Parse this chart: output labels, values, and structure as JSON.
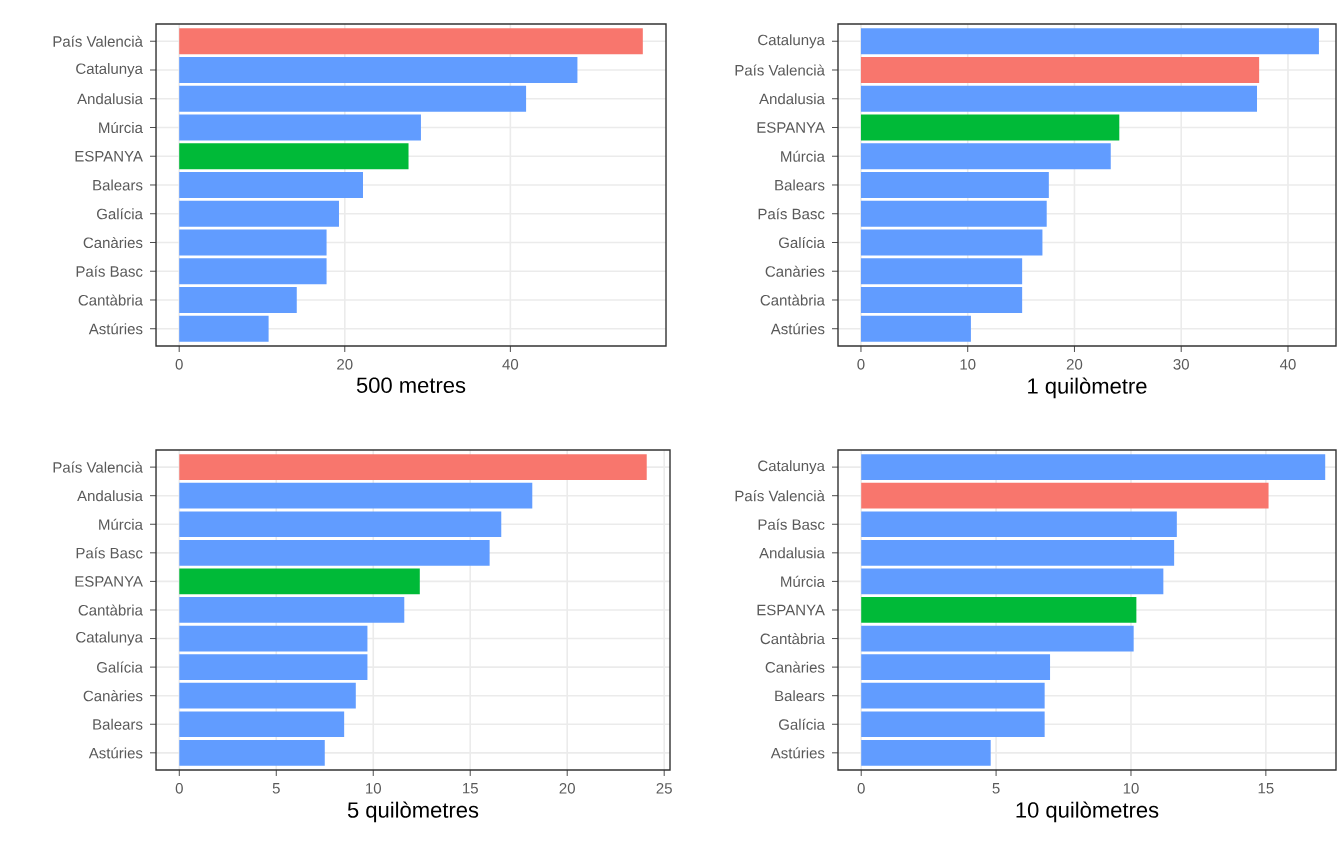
{
  "chart_data": [
    {
      "type": "bar",
      "orientation": "horizontal",
      "xlabel": "500 metres",
      "grid": true,
      "categories": [
        "País Valencià",
        "Catalunya",
        "Andalusia",
        "Múrcia",
        "ESPANYA",
        "Balears",
        "Galícia",
        "Canàries",
        "País Basc",
        "Cantàbria",
        "Astúries"
      ],
      "values": [
        56.0,
        48.1,
        41.9,
        29.2,
        27.7,
        22.2,
        19.3,
        17.8,
        17.8,
        14.2,
        10.8
      ],
      "colors": [
        "#f8766d",
        "#619cff",
        "#619cff",
        "#619cff",
        "#00ba38",
        "#619cff",
        "#619cff",
        "#619cff",
        "#619cff",
        "#619cff",
        "#619cff"
      ],
      "xlim": [
        -2.8,
        58.8
      ],
      "xticks": [
        0,
        20,
        40
      ]
    },
    {
      "type": "bar",
      "orientation": "horizontal",
      "xlabel": "1 quilòmetre",
      "grid": true,
      "categories": [
        "Catalunya",
        "País Valencià",
        "Andalusia",
        "ESPANYA",
        "Múrcia",
        "Balears",
        "País Basc",
        "Galícia",
        "Canàries",
        "Cantàbria",
        "Astúries"
      ],
      "values": [
        42.9,
        37.3,
        37.1,
        24.2,
        23.4,
        17.6,
        17.4,
        17.0,
        15.1,
        15.1,
        10.3
      ],
      "colors": [
        "#619cff",
        "#f8766d",
        "#619cff",
        "#00ba38",
        "#619cff",
        "#619cff",
        "#619cff",
        "#619cff",
        "#619cff",
        "#619cff",
        "#619cff"
      ],
      "xlim": [
        -2.15,
        44.5
      ],
      "xticks": [
        0,
        10,
        20,
        30,
        40
      ]
    },
    {
      "type": "bar",
      "orientation": "horizontal",
      "xlabel": "5 quilòmetres",
      "grid": true,
      "categories": [
        "País Valencià",
        "Andalusia",
        "Múrcia",
        "País Basc",
        "ESPANYA",
        "Cantàbria",
        "Catalunya",
        "Galícia",
        "Canàries",
        "Balears",
        "Astúries"
      ],
      "values": [
        24.1,
        18.2,
        16.6,
        16.0,
        12.4,
        11.6,
        9.7,
        9.7,
        9.1,
        8.5,
        7.5
      ],
      "colors": [
        "#f8766d",
        "#619cff",
        "#619cff",
        "#619cff",
        "#00ba38",
        "#619cff",
        "#619cff",
        "#619cff",
        "#619cff",
        "#619cff",
        "#619cff"
      ],
      "xlim": [
        -1.2,
        25.3
      ],
      "xticks": [
        0,
        5,
        10,
        15,
        20,
        25
      ]
    },
    {
      "type": "bar",
      "orientation": "horizontal",
      "xlabel": "10 quilòmetres",
      "grid": true,
      "categories": [
        "Catalunya",
        "País Valencià",
        "País Basc",
        "Andalusia",
        "Múrcia",
        "ESPANYA",
        "Cantàbria",
        "Canàries",
        "Balears",
        "Galícia",
        "Astúries"
      ],
      "values": [
        17.2,
        15.1,
        11.7,
        11.6,
        11.2,
        10.2,
        10.1,
        7.0,
        6.8,
        6.8,
        4.8
      ],
      "colors": [
        "#619cff",
        "#f8766d",
        "#619cff",
        "#619cff",
        "#619cff",
        "#00ba38",
        "#619cff",
        "#619cff",
        "#619cff",
        "#619cff",
        "#619cff"
      ],
      "xlim": [
        -0.86,
        17.6
      ],
      "xticks": [
        0,
        5,
        10,
        15
      ]
    }
  ]
}
